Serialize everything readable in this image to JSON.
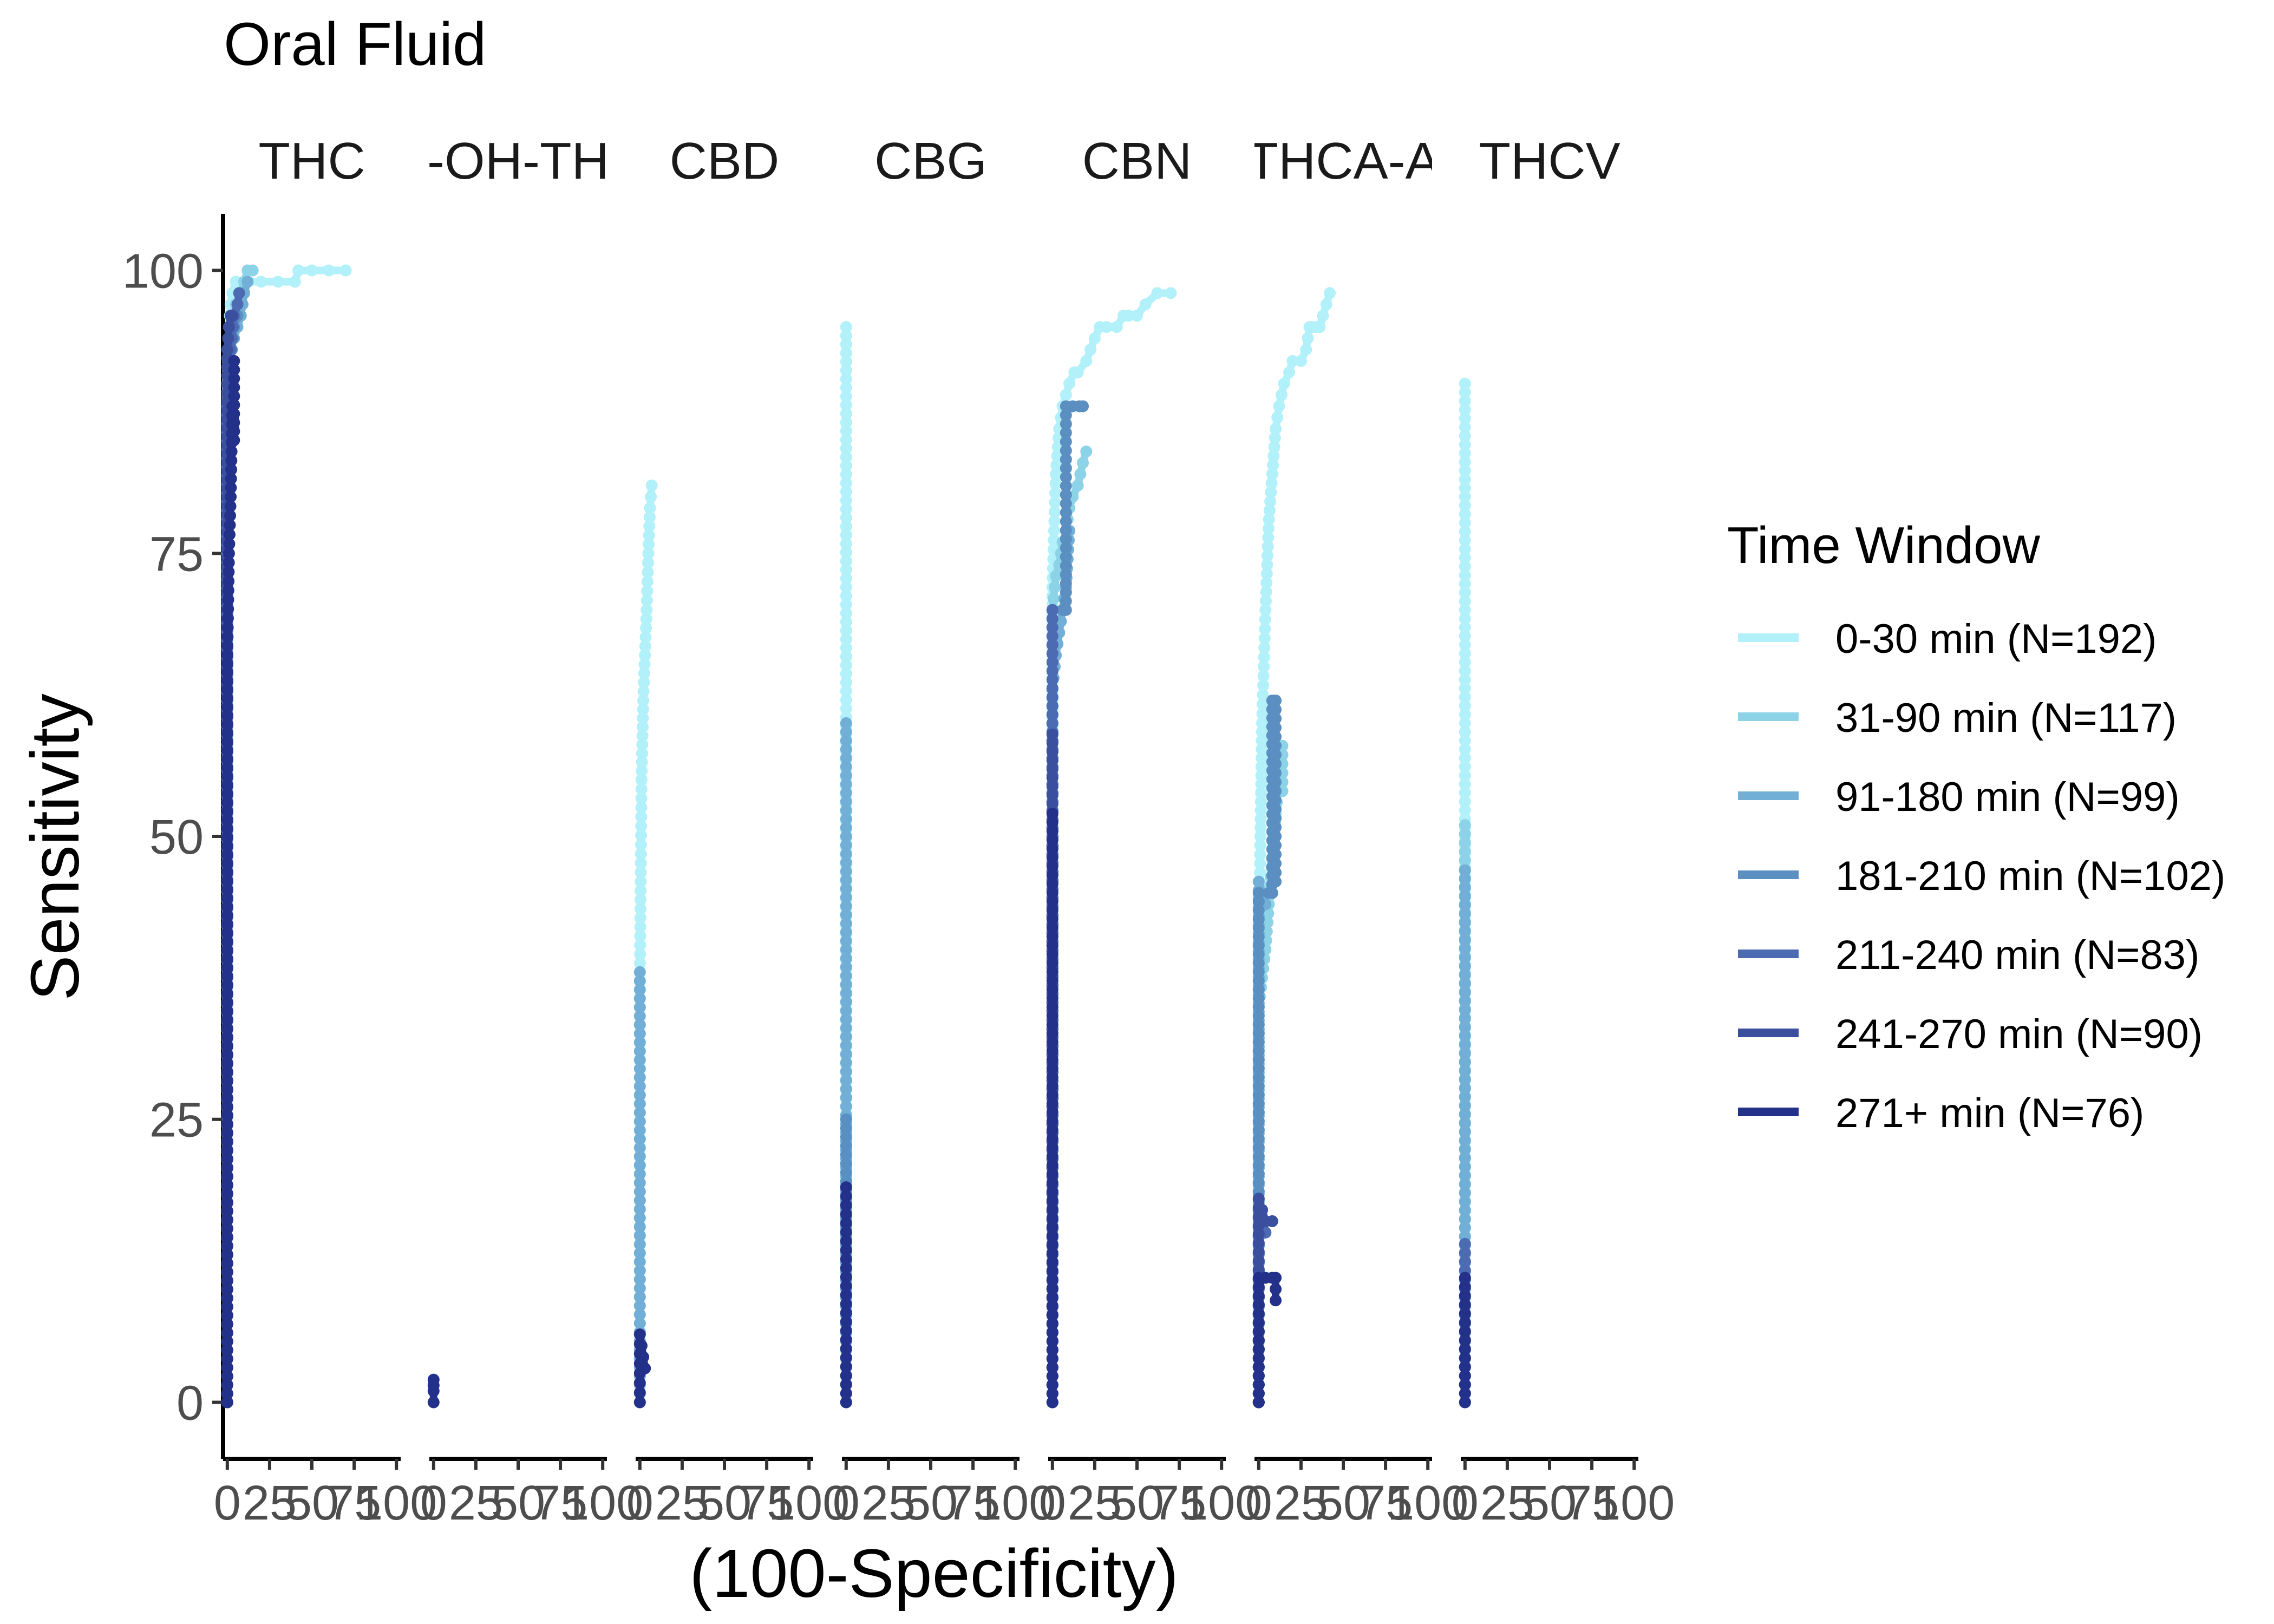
{
  "chart_data": {
    "type": "line",
    "title": "Oral Fluid",
    "xlabel": "(100-Specificity)",
    "ylabel": "Sensitivity",
    "x_ticks": [
      0,
      25,
      50,
      75,
      100
    ],
    "x_tick_labels": [
      "0",
      "25",
      "50",
      "75",
      "100"
    ],
    "y_ticks": [
      0,
      25,
      50,
      75,
      100
    ],
    "y_tick_labels": [
      "0",
      "25",
      "50",
      "75",
      "100"
    ],
    "xlim": [
      -2.5,
      102.5
    ],
    "ylim": [
      -5,
      105
    ],
    "grid": false,
    "legend": {
      "title": "Time Window",
      "position": "right",
      "entries": [
        "0-30 min (N=192)",
        "31-90 min (N=117)",
        "91-180 min (N=99)",
        "181-210 min (N=102)",
        "211-240 min (N=83)",
        "241-270 min (N=90)",
        "271+ min (N=76)"
      ]
    },
    "series_colors": [
      "#B2F1F9",
      "#8DD3E8",
      "#72AFD6",
      "#5B8FC2",
      "#4C6BB2",
      "#3A4F9E",
      "#24318A"
    ],
    "panels": [
      {
        "label": "THC",
        "series": [
          {
            "name": "0-30 min (N=192)",
            "x": [
              0,
              0,
              0.5,
              1,
              2,
              3,
              5,
              10,
              20,
              30,
              40,
              42,
              50,
              60,
              70
            ],
            "y": [
              0,
              85,
              92,
              95,
              97,
              98,
              99,
              99,
              99,
              99,
              99,
              100,
              100,
              100,
              100
            ]
          },
          {
            "name": "31-90 min (N=117)",
            "x": [
              0,
              0,
              1,
              2,
              3,
              5,
              8,
              10,
              12,
              15
            ],
            "y": [
              0,
              88,
              93,
              95,
              96,
              97,
              98,
              99,
              100,
              100
            ]
          },
          {
            "name": "91-180 min (N=99)",
            "x": [
              0,
              0,
              2,
              4,
              6,
              8,
              10,
              12
            ],
            "y": [
              0,
              90,
              93,
              94,
              95,
              96,
              98,
              99
            ]
          },
          {
            "name": "181-210 min (N=102)",
            "x": [
              0,
              0,
              2,
              4,
              6
            ],
            "y": [
              0,
              88,
              92,
              95,
              96
            ]
          },
          {
            "name": "211-240 min (N=83)",
            "x": [
              0,
              0,
              2,
              4,
              6,
              7
            ],
            "y": [
              0,
              89,
              93,
              96,
              97,
              98
            ]
          },
          {
            "name": "241-270 min (N=90)",
            "x": [
              0,
              0,
              1,
              2,
              3
            ],
            "y": [
              0,
              93,
              95,
              96,
              96
            ]
          },
          {
            "name": "271+ min (N=76)",
            "x": [
              0,
              0,
              1,
              2,
              3,
              4,
              4
            ],
            "y": [
              0,
              66,
              75,
              80,
              88,
              85,
              92
            ]
          }
        ]
      },
      {
        "label": "-OH-TH",
        "series": [
          {
            "name": "271+ min (N=76)",
            "x": [
              0,
              0,
              0,
              0
            ],
            "y": [
              0,
              1,
              1.5,
              2
            ]
          }
        ]
      },
      {
        "label": "CBD",
        "series": [
          {
            "name": "0-30 min (N=192)",
            "x": [
              0,
              0,
              0.5,
              1,
              2,
              3,
              4,
              5,
              6,
              7
            ],
            "y": [
              0,
              38,
              46,
              55,
              62,
              66,
              70,
              75,
              79,
              81
            ]
          },
          {
            "name": "91-180 min (N=99)",
            "x": [
              0,
              0
            ],
            "y": [
              0,
              38
            ]
          },
          {
            "name": "271+ min (N=76)",
            "x": [
              0,
              0,
              1,
              2,
              3
            ],
            "y": [
              0,
              6,
              5,
              4,
              3
            ]
          }
        ]
      },
      {
        "label": "CBG",
        "series": [
          {
            "name": "0-30 min (N=192)",
            "x": [
              0,
              0
            ],
            "y": [
              0,
              95
            ]
          },
          {
            "name": "91-180 min (N=99)",
            "x": [
              0,
              0
            ],
            "y": [
              0,
              60
            ]
          },
          {
            "name": "181-210 min (N=102)",
            "x": [
              0,
              0
            ],
            "y": [
              0,
              25
            ]
          },
          {
            "name": "271+ min (N=76)",
            "x": [
              0,
              0
            ],
            "y": [
              0,
              19
            ]
          }
        ]
      },
      {
        "label": "CBN",
        "series": [
          {
            "name": "0-30 min (N=192)",
            "x": [
              0,
              0,
              1,
              2,
              4,
              6,
              8,
              10,
              13,
              15,
              20,
              25,
              28,
              32,
              38,
              42,
              45,
              50,
              55,
              62,
              70
            ],
            "y": [
              0,
              72,
              77,
              82,
              86,
              88,
              89,
              90,
              91,
              91,
              92,
              94,
              95,
              95,
              95,
              96,
              96,
              96,
              97,
              98,
              98
            ]
          },
          {
            "name": "31-90 min (N=117)",
            "x": [
              0,
              0,
              2,
              4,
              6,
              8,
              10,
              12,
              15,
              18,
              20
            ],
            "y": [
              0,
              70,
              73,
              74,
              76,
              77,
              79,
              80,
              81,
              83,
              84
            ]
          },
          {
            "name": "91-180 min (N=99)",
            "x": [
              0,
              0,
              2,
              4,
              6,
              8,
              10
            ],
            "y": [
              0,
              63,
              66,
              68,
              70,
              72,
              77
            ]
          },
          {
            "name": "181-210 min (N=102)",
            "x": [
              0,
              0,
              6,
              8,
              8,
              12,
              16,
              18
            ],
            "y": [
              0,
              70,
              70,
              70,
              88,
              88,
              88,
              88
            ]
          },
          {
            "name": "211-240 min (N=83)",
            "x": [
              0,
              0
            ],
            "y": [
              0,
              70
            ]
          },
          {
            "name": "241-270 min (N=90)",
            "x": [
              0,
              0
            ],
            "y": [
              0,
              59
            ]
          },
          {
            "name": "271+ min (N=76)",
            "x": [
              0,
              0
            ],
            "y": [
              0,
              52
            ]
          }
        ]
      },
      {
        "label": "THCA-A",
        "series": [
          {
            "name": "0-30 min (N=192)",
            "x": [
              0,
              0,
              1,
              2,
              3,
              4,
              5,
              6,
              8,
              10,
              12,
              15,
              18,
              20,
              25,
              28,
              30,
              32,
              34,
              36,
              38,
              40,
              42
            ],
            "y": [
              0,
              38,
              50,
              60,
              65,
              70,
              74,
              78,
              82,
              86,
              88,
              90,
              91,
              92,
              92,
              93,
              95,
              95,
              95,
              95,
              96,
              97,
              98
            ]
          },
          {
            "name": "31-90 min (N=117)",
            "x": [
              0,
              0,
              4,
              8,
              10,
              12,
              14,
              14
            ],
            "y": [
              0,
              35,
              40,
              48,
              52,
              55,
              58,
              54
            ]
          },
          {
            "name": "91-180 min (N=99)",
            "x": [
              0,
              0,
              2,
              4
            ],
            "y": [
              0,
              46,
              45,
              44
            ]
          },
          {
            "name": "181-210 min (N=102)",
            "x": [
              0,
              0,
              6,
              8,
              8,
              10,
              10
            ],
            "y": [
              0,
              45,
              45,
              45,
              62,
              62,
              46
            ]
          },
          {
            "name": "211-240 min (N=83)",
            "x": [
              0,
              0,
              2,
              4
            ],
            "y": [
              0,
              17,
              17,
              15
            ]
          },
          {
            "name": "241-270 min (N=90)",
            "x": [
              0,
              0,
              4,
              8
            ],
            "y": [
              0,
              18,
              16,
              16
            ]
          },
          {
            "name": "271+ min (N=76)",
            "x": [
              0,
              0,
              4,
              8,
              10,
              10
            ],
            "y": [
              0,
              11,
              11,
              11,
              11,
              9
            ]
          }
        ]
      },
      {
        "label": "THCV",
        "series": [
          {
            "name": "0-30 min (N=192)",
            "x": [
              0,
              0
            ],
            "y": [
              0,
              90
            ]
          },
          {
            "name": "31-90 min (N=117)",
            "x": [
              0,
              0
            ],
            "y": [
              0,
              51
            ]
          },
          {
            "name": "91-180 min (N=99)",
            "x": [
              0,
              0
            ],
            "y": [
              0,
              47
            ]
          },
          {
            "name": "211-240 min (N=83)",
            "x": [
              0,
              0
            ],
            "y": [
              0,
              14
            ]
          },
          {
            "name": "271+ min (N=76)",
            "x": [
              0,
              0
            ],
            "y": [
              0,
              11
            ]
          }
        ]
      }
    ]
  }
}
